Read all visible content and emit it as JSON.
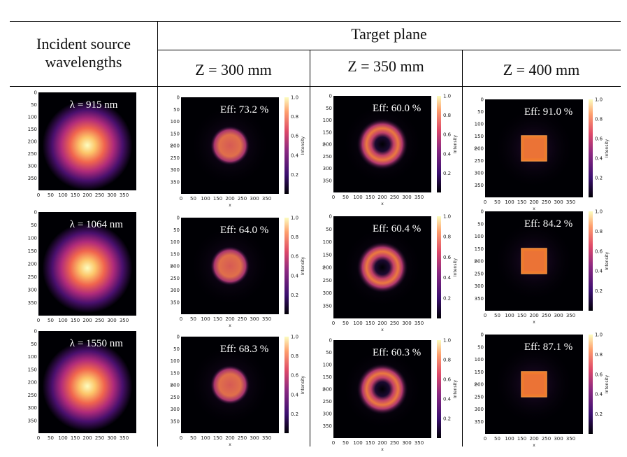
{
  "header": {
    "col1": [
      "Incident source",
      "wavelengths"
    ],
    "target_plane": "Target plane",
    "z_labels": [
      "Z = 300 mm",
      "Z = 350 mm",
      "Z = 400 mm"
    ]
  },
  "sources": [
    {
      "label": "λ = 915 nm"
    },
    {
      "label": "λ = 1064 nm"
    },
    {
      "label": "λ = 1550 nm"
    }
  ],
  "results": [
    [
      "Eff: 73.2 %",
      "Eff: 60.0 %",
      "Eff: 91.0 %"
    ],
    [
      "Eff: 64.0 %",
      "Eff: 60.4 %",
      "Eff: 84.2 %"
    ],
    [
      "Eff: 68.3 %",
      "Eff: 60.3 %",
      "Eff: 87.1 %"
    ]
  ],
  "target_shapes": [
    "disk",
    "ring",
    "square"
  ],
  "axis": {
    "x_ticks": [
      "0",
      "50",
      "100",
      "150",
      "200",
      "250",
      "300",
      "350"
    ],
    "y_ticks": [
      "0",
      "50",
      "100",
      "150",
      "200",
      "250",
      "300",
      "350"
    ],
    "xlabel": "x",
    "ylabel": "y",
    "colorbar_label": "Intensity",
    "colorbar_ticks": [
      "0.2",
      "0.4",
      "0.6",
      "0.8",
      "1.0"
    ]
  },
  "colors": {
    "plot_bg": "#000004",
    "magma_low": "#3b0f70",
    "magma_mid": "#e0584e",
    "magma_high": "#fcfdbf",
    "target_orange": "#f07a2e"
  }
}
